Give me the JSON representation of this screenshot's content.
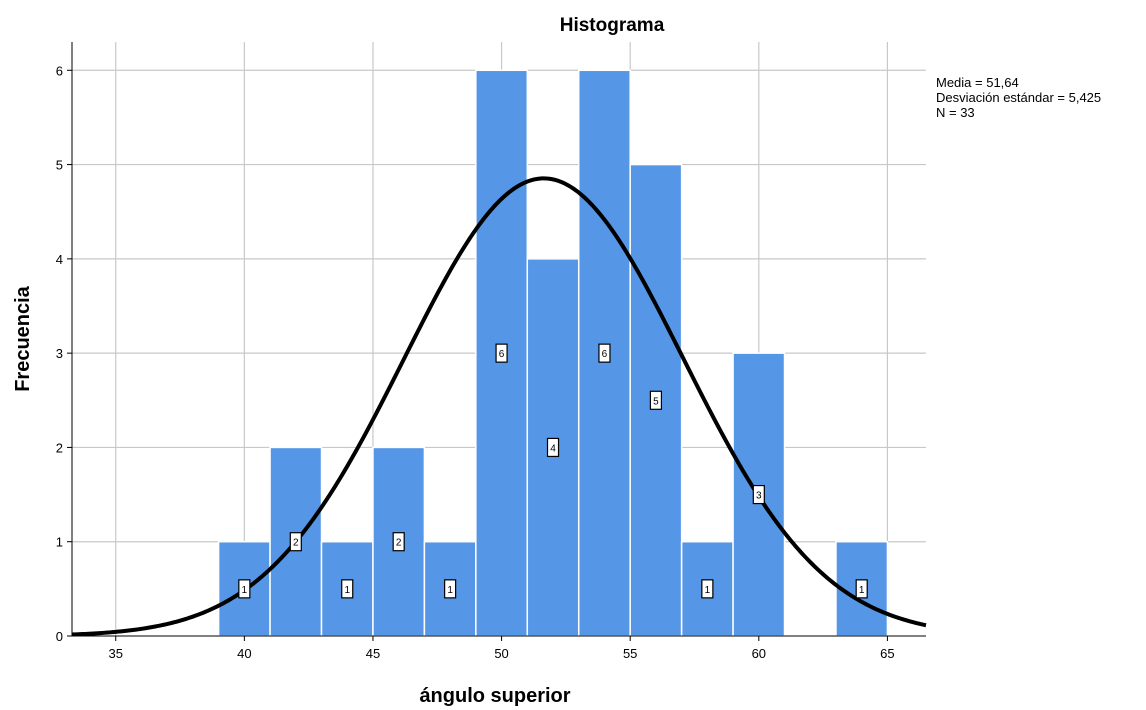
{
  "chart_data": {
    "type": "bar",
    "subtype": "histogram",
    "title": "Histograma",
    "xlabel": "ángulo superior",
    "ylabel": "Frecuencia",
    "bin_width": 2,
    "bins": [
      {
        "start": 39,
        "end": 41,
        "count": 1
      },
      {
        "start": 41,
        "end": 43,
        "count": 2
      },
      {
        "start": 43,
        "end": 45,
        "count": 1
      },
      {
        "start": 45,
        "end": 47,
        "count": 2
      },
      {
        "start": 47,
        "end": 49,
        "count": 1
      },
      {
        "start": 49,
        "end": 51,
        "count": 6
      },
      {
        "start": 51,
        "end": 53,
        "count": 4
      },
      {
        "start": 53,
        "end": 55,
        "count": 6
      },
      {
        "start": 55,
        "end": 57,
        "count": 5
      },
      {
        "start": 57,
        "end": 59,
        "count": 1
      },
      {
        "start": 59,
        "end": 61,
        "count": 3
      },
      {
        "start": 63,
        "end": 65,
        "count": 1
      }
    ],
    "x_ticks": [
      "35",
      "40",
      "45",
      "50",
      "55",
      "60",
      "65"
    ],
    "y_ticks": [
      "0",
      "1",
      "2",
      "3",
      "4",
      "5",
      "6"
    ],
    "xlim": [
      33.3,
      66.5
    ],
    "ylim": [
      0,
      6.3
    ],
    "grid": true,
    "bar_color": "#5596e6",
    "curve_color": "#000000",
    "normal_curve": {
      "mean": 51.64,
      "sd": 5.425,
      "n": 33
    },
    "stats_text": [
      "Media = 51,64",
      "Desviación estándar = 5,425",
      "N = 33"
    ]
  }
}
